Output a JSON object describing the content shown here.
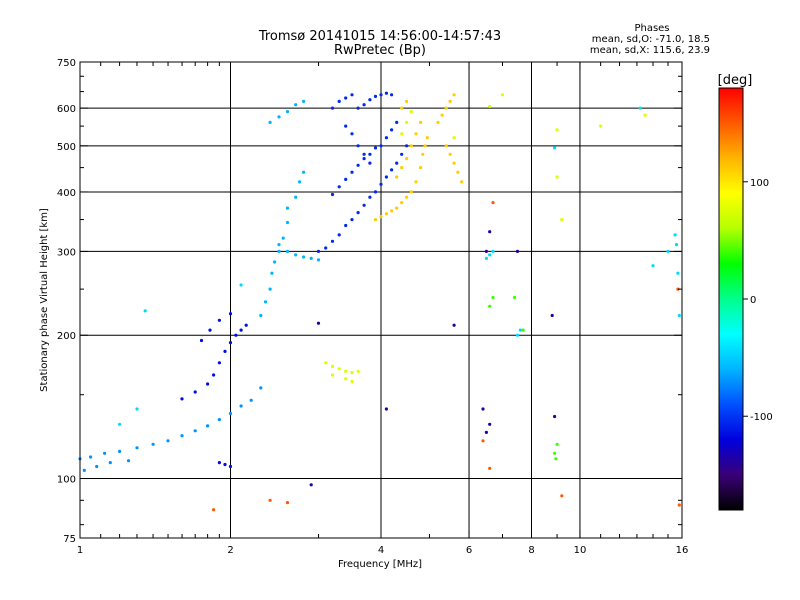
{
  "chart_data": {
    "type": "scatter",
    "title": "Tromsø 20141015 14:56:00-14:57:43",
    "subtitle": "RwPretec (Bp)",
    "xlabel": "Frequency [MHz]",
    "ylabel": "Stationary phase Virtual Height [km]",
    "x_scale": "log",
    "y_scale": "log",
    "xlim": [
      1,
      16
    ],
    "ylim": [
      75,
      750
    ],
    "x_ticks": [
      1,
      2,
      4,
      6,
      8,
      10,
      16
    ],
    "x_tick_labels": [
      "1",
      "2",
      "4",
      "6",
      "8",
      "10",
      "16"
    ],
    "y_ticks": [
      75,
      100,
      200,
      300,
      400,
      500,
      600,
      750
    ],
    "y_tick_labels": [
      "75",
      "100",
      "200",
      "300",
      "400",
      "500",
      "600",
      "750"
    ],
    "x_minor_ticks": [
      1.1,
      1.2,
      1.3,
      1.4,
      1.5,
      1.6,
      1.7,
      1.8,
      1.9,
      3,
      5,
      7,
      9,
      11,
      12,
      13,
      14,
      15
    ],
    "y_minor_ticks": [
      80,
      90,
      150,
      250,
      350,
      450,
      550,
      650,
      700
    ],
    "x_grid": [
      2,
      4,
      6,
      8,
      10
    ],
    "y_grid": [
      100,
      200,
      300,
      400,
      500,
      600
    ],
    "phase_panel": {
      "title": "Phases",
      "line1": "mean, sd,O: -71.0, 18.5",
      "line2": "mean, sd,X: 115.6, 23.9"
    },
    "colorbar": {
      "label": "[deg]",
      "range": [
        -180,
        180
      ],
      "ticks": [
        100,
        0,
        -100
      ],
      "tick_labels": [
        "100",
        "0",
        "-100"
      ],
      "colors": [
        "#000000",
        "#3a0078",
        "#0000dd",
        "#0050ff",
        "#00b4ff",
        "#00ffff",
        "#00ff8c",
        "#00ff00",
        "#b4ff00",
        "#ffff00",
        "#ffb400",
        "#ff5a00",
        "#ff0000"
      ]
    },
    "series": [
      {
        "phase_deg": -70,
        "points": [
          [
            1.0,
            110
          ],
          [
            1.05,
            111
          ],
          [
            1.12,
            113
          ],
          [
            1.2,
            114
          ],
          [
            1.3,
            116
          ],
          [
            1.4,
            118
          ],
          [
            1.5,
            120
          ],
          [
            1.6,
            123
          ],
          [
            1.7,
            126
          ],
          [
            1.8,
            129
          ],
          [
            1.9,
            133
          ],
          [
            2.0,
            137
          ],
          [
            2.1,
            142
          ],
          [
            2.2,
            146
          ],
          [
            2.3,
            155
          ],
          [
            1.02,
            104
          ],
          [
            1.08,
            106
          ],
          [
            1.15,
            108
          ],
          [
            1.25,
            109
          ]
        ]
      },
      {
        "phase_deg": -115,
        "points": [
          [
            1.6,
            147
          ],
          [
            1.7,
            152
          ],
          [
            1.8,
            158
          ],
          [
            1.85,
            165
          ],
          [
            1.9,
            175
          ],
          [
            1.95,
            185
          ],
          [
            2.0,
            193
          ],
          [
            2.05,
            200
          ],
          [
            2.1,
            205
          ],
          [
            2.15,
            210
          ],
          [
            1.75,
            195
          ],
          [
            1.82,
            205
          ],
          [
            1.9,
            215
          ],
          [
            2.0,
            222
          ],
          [
            1.9,
            108
          ],
          [
            1.95,
            107
          ],
          [
            2.0,
            106
          ]
        ]
      },
      {
        "phase_deg": -60,
        "points": [
          [
            2.3,
            220
          ],
          [
            2.35,
            235
          ],
          [
            2.4,
            250
          ],
          [
            2.42,
            270
          ],
          [
            2.45,
            285
          ],
          [
            2.5,
            300
          ],
          [
            2.55,
            320
          ],
          [
            2.6,
            345
          ],
          [
            2.6,
            370
          ],
          [
            2.7,
            390
          ],
          [
            2.75,
            420
          ],
          [
            2.8,
            440
          ],
          [
            2.4,
            560
          ],
          [
            2.5,
            575
          ],
          [
            2.6,
            590
          ],
          [
            2.7,
            610
          ],
          [
            2.8,
            620
          ],
          [
            2.5,
            310
          ],
          [
            2.6,
            300
          ],
          [
            2.7,
            295
          ],
          [
            2.8,
            292
          ],
          [
            2.9,
            290
          ],
          [
            3.0,
            288
          ]
        ]
      },
      {
        "phase_deg": -105,
        "points": [
          [
            3.0,
            300
          ],
          [
            3.1,
            305
          ],
          [
            3.2,
            315
          ],
          [
            3.3,
            325
          ],
          [
            3.4,
            340
          ],
          [
            3.5,
            350
          ],
          [
            3.6,
            362
          ],
          [
            3.7,
            375
          ],
          [
            3.8,
            390
          ],
          [
            3.9,
            400
          ],
          [
            4.0,
            415
          ],
          [
            4.1,
            430
          ],
          [
            4.2,
            445
          ],
          [
            4.3,
            460
          ],
          [
            4.4,
            480
          ],
          [
            4.5,
            500
          ],
          [
            3.2,
            395
          ],
          [
            3.3,
            410
          ],
          [
            3.4,
            425
          ],
          [
            3.5,
            440
          ],
          [
            3.6,
            455
          ],
          [
            3.7,
            470
          ],
          [
            3.8,
            480
          ],
          [
            3.9,
            495
          ],
          [
            4.0,
            500
          ],
          [
            4.1,
            520
          ],
          [
            4.2,
            540
          ],
          [
            4.3,
            560
          ],
          [
            3.6,
            600
          ],
          [
            3.7,
            610
          ],
          [
            3.8,
            625
          ],
          [
            3.9,
            635
          ],
          [
            4.0,
            640
          ],
          [
            4.1,
            645
          ],
          [
            4.2,
            640
          ],
          [
            3.2,
            600
          ],
          [
            3.3,
            620
          ],
          [
            3.4,
            630
          ],
          [
            3.5,
            640
          ],
          [
            3.4,
            550
          ],
          [
            3.5,
            530
          ],
          [
            3.6,
            500
          ],
          [
            3.7,
            480
          ],
          [
            3.8,
            460
          ]
        ]
      },
      {
        "phase_deg": 110,
        "points": [
          [
            3.9,
            350
          ],
          [
            4.0,
            355
          ],
          [
            4.1,
            360
          ],
          [
            4.2,
            365
          ],
          [
            4.3,
            370
          ],
          [
            4.4,
            380
          ],
          [
            4.5,
            390
          ],
          [
            4.6,
            400
          ],
          [
            4.7,
            420
          ],
          [
            4.8,
            450
          ],
          [
            4.85,
            480
          ],
          [
            4.9,
            500
          ],
          [
            4.95,
            520
          ],
          [
            4.3,
            430
          ],
          [
            4.4,
            450
          ],
          [
            4.5,
            470
          ],
          [
            4.6,
            500
          ],
          [
            4.7,
            530
          ],
          [
            4.8,
            560
          ],
          [
            4.4,
            600
          ],
          [
            4.5,
            620
          ],
          [
            5.2,
            560
          ],
          [
            5.3,
            580
          ],
          [
            5.4,
            600
          ],
          [
            5.5,
            620
          ],
          [
            5.6,
            640
          ],
          [
            5.4,
            500
          ],
          [
            5.5,
            480
          ],
          [
            5.6,
            460
          ],
          [
            5.7,
            440
          ],
          [
            5.8,
            420
          ]
        ]
      },
      {
        "phase_deg": 75,
        "points": [
          [
            3.1,
            175
          ],
          [
            3.2,
            172
          ],
          [
            3.3,
            170
          ],
          [
            3.4,
            168
          ],
          [
            3.5,
            167
          ],
          [
            3.6,
            168
          ],
          [
            3.2,
            165
          ],
          [
            3.4,
            162
          ],
          [
            3.5,
            160
          ],
          [
            4.5,
            560
          ],
          [
            4.6,
            590
          ],
          [
            4.4,
            530
          ],
          [
            5.6,
            520
          ],
          [
            9.0,
            540
          ],
          [
            9.0,
            430
          ],
          [
            11.0,
            550
          ],
          [
            13.5,
            580
          ],
          [
            9.2,
            350
          ],
          [
            7.0,
            640
          ],
          [
            6.6,
            605
          ]
        ]
      },
      {
        "phase_deg": -45,
        "points": [
          [
            1.35,
            225
          ],
          [
            6.5,
            290
          ],
          [
            6.6,
            295
          ],
          [
            6.7,
            300
          ],
          [
            7.5,
            200
          ],
          [
            7.6,
            205
          ],
          [
            15.5,
            325
          ],
          [
            15.6,
            310
          ],
          [
            15.7,
            270
          ],
          [
            15.8,
            220
          ],
          [
            14.0,
            280
          ],
          [
            15.0,
            300
          ],
          [
            2.1,
            255
          ],
          [
            1.2,
            130
          ],
          [
            1.3,
            140
          ],
          [
            8.9,
            495
          ],
          [
            13.2,
            600
          ]
        ]
      },
      {
        "phase_deg": -140,
        "points": [
          [
            4.1,
            140
          ],
          [
            6.5,
            300
          ],
          [
            6.6,
            330
          ],
          [
            7.5,
            300
          ],
          [
            8.8,
            220
          ],
          [
            8.9,
            135
          ],
          [
            5.6,
            210
          ],
          [
            6.4,
            140
          ],
          [
            6.6,
            130
          ],
          [
            6.5,
            125
          ],
          [
            2.9,
            97
          ],
          [
            3.0,
            212
          ]
        ]
      },
      {
        "phase_deg": 150,
        "points": [
          [
            1.85,
            86
          ],
          [
            2.4,
            90
          ],
          [
            2.6,
            89
          ],
          [
            6.6,
            105
          ],
          [
            6.4,
            120
          ],
          [
            15.7,
            250
          ],
          [
            15.8,
            88
          ],
          [
            6.7,
            380
          ],
          [
            9.2,
            92
          ]
        ]
      },
      {
        "phase_deg": 40,
        "points": [
          [
            8.9,
            113
          ],
          [
            8.95,
            110
          ],
          [
            9.0,
            118
          ],
          [
            6.7,
            240
          ],
          [
            6.6,
            230
          ],
          [
            7.4,
            240
          ],
          [
            7.7,
            205
          ]
        ]
      }
    ]
  }
}
